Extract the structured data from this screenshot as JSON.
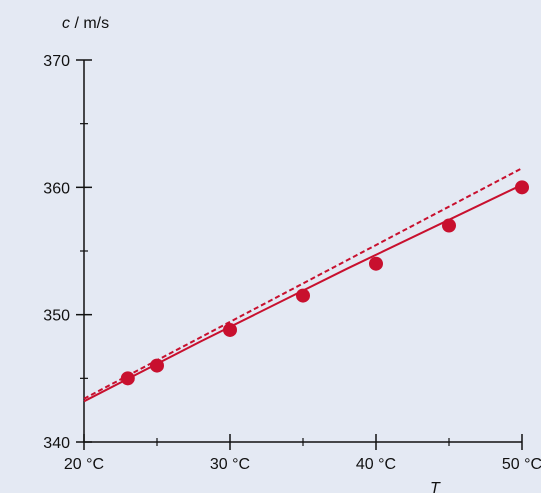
{
  "chart_data": {
    "type": "scatter",
    "ylabel_symbol": "c",
    "ylabel_unit": " / m/s",
    "xlabel_symbol": "T",
    "x_unit": "°C",
    "xlim": [
      20,
      50
    ],
    "ylim": [
      340,
      370
    ],
    "x_ticks": [
      20,
      30,
      40,
      50
    ],
    "x_minor_ticks": [
      25,
      35,
      45
    ],
    "x_tick_labels": [
      "20 °C",
      "30 °C",
      "40 °C",
      "50 °C"
    ],
    "y_ticks": [
      340,
      350,
      360,
      370
    ],
    "y_minor_ticks": [
      345,
      355,
      365
    ],
    "y_tick_labels": [
      "340",
      "350",
      "360",
      "370"
    ],
    "grid": false,
    "colors": {
      "background": "#e4e9f3",
      "series": "#c8102e",
      "axis": "#111111"
    },
    "series": [
      {
        "kind": "points",
        "x": [
          23,
          25,
          30,
          35,
          40,
          45,
          50
        ],
        "y": [
          345.0,
          346.0,
          348.8,
          351.5,
          354.0,
          357.0,
          360.0
        ]
      },
      {
        "kind": "solid-line",
        "x": [
          20,
          28,
          38,
          50
        ],
        "y": [
          343.2,
          347.9,
          353.6,
          360.2
        ]
      },
      {
        "kind": "dashed-line",
        "x": [
          20,
          50
        ],
        "y": [
          343.4,
          361.5
        ]
      }
    ]
  }
}
